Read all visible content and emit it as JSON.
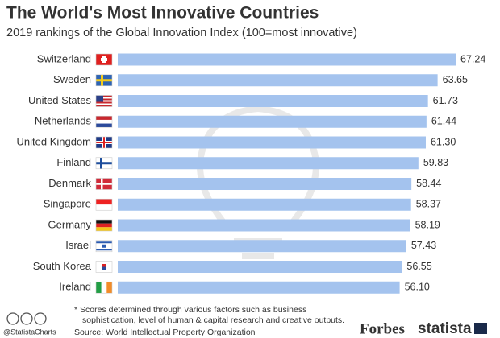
{
  "chart_data": {
    "type": "bar",
    "orientation": "horizontal",
    "title": "The World's Most Innovative Countries",
    "subtitle": "2019 rankings of the Global Innovation Index (100=most innovative)",
    "categories": [
      "Switzerland",
      "Sweden",
      "United States",
      "Netherlands",
      "United Kingdom",
      "Finland",
      "Denmark",
      "Singapore",
      "Germany",
      "Israel",
      "South Korea",
      "Ireland"
    ],
    "values": [
      67.24,
      63.65,
      61.73,
      61.44,
      61.3,
      59.83,
      58.44,
      58.37,
      58.19,
      57.43,
      56.55,
      56.1
    ],
    "value_labels": [
      "67.24",
      "63.65",
      "61.73",
      "61.44",
      "61.30",
      "59.83",
      "58.44",
      "58.37",
      "58.19",
      "57.43",
      "56.55",
      "56.10"
    ],
    "color": "#a4c3ee",
    "note": "* Scores determined through various factors such as business sophistication, level of human & capital research and creative outputs.",
    "source": "Source: World Intellectual Property Organization",
    "handle": "@StatistaCharts",
    "logos": [
      "Forbes",
      "statista"
    ]
  }
}
